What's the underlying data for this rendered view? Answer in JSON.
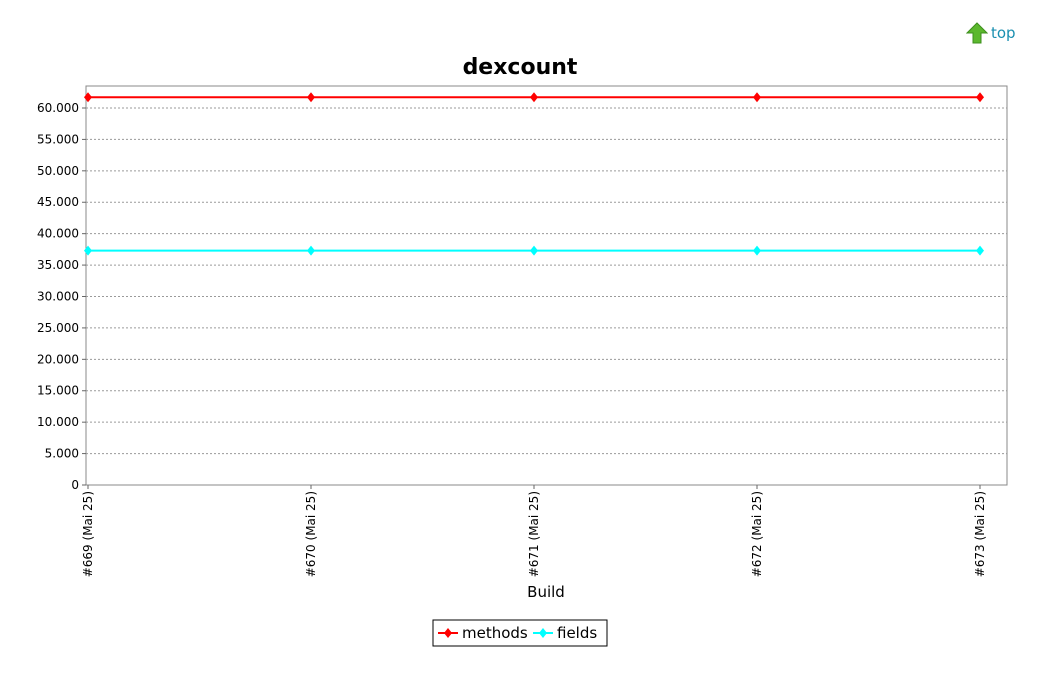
{
  "nav": {
    "top_label": "top",
    "top_icon": "up-arrow-icon"
  },
  "colors": {
    "methods": "#ff0000",
    "fields": "#00ffff",
    "plot_border": "#888888",
    "grid": "#9a9a9a",
    "link": "#1a8fb0",
    "icon": "#5cb82e"
  },
  "chart_data": {
    "type": "line",
    "title": "dexcount",
    "xlabel": "Build",
    "ylabel": "",
    "categories": [
      "#669 (Mai 25)",
      "#670 (Mai 25)",
      "#671 (Mai 25)",
      "#672 (Mai 25)",
      "#673 (Mai 25)"
    ],
    "series": [
      {
        "name": "methods",
        "values": [
          61700,
          61700,
          61700,
          61700,
          61700
        ]
      },
      {
        "name": "fields",
        "values": [
          37300,
          37300,
          37300,
          37300,
          37300
        ]
      }
    ],
    "ylim": [
      0,
      63500
    ],
    "yticks": [
      0,
      5000,
      10000,
      15000,
      20000,
      25000,
      30000,
      35000,
      40000,
      45000,
      50000,
      55000,
      60000
    ],
    "ytick_labels": [
      "0",
      "5.000",
      "10.000",
      "15.000",
      "20.000",
      "25.000",
      "30.000",
      "35.000",
      "40.000",
      "45.000",
      "50.000",
      "55.000",
      "60.000"
    ],
    "grid": true,
    "legend": "bottom-center"
  }
}
